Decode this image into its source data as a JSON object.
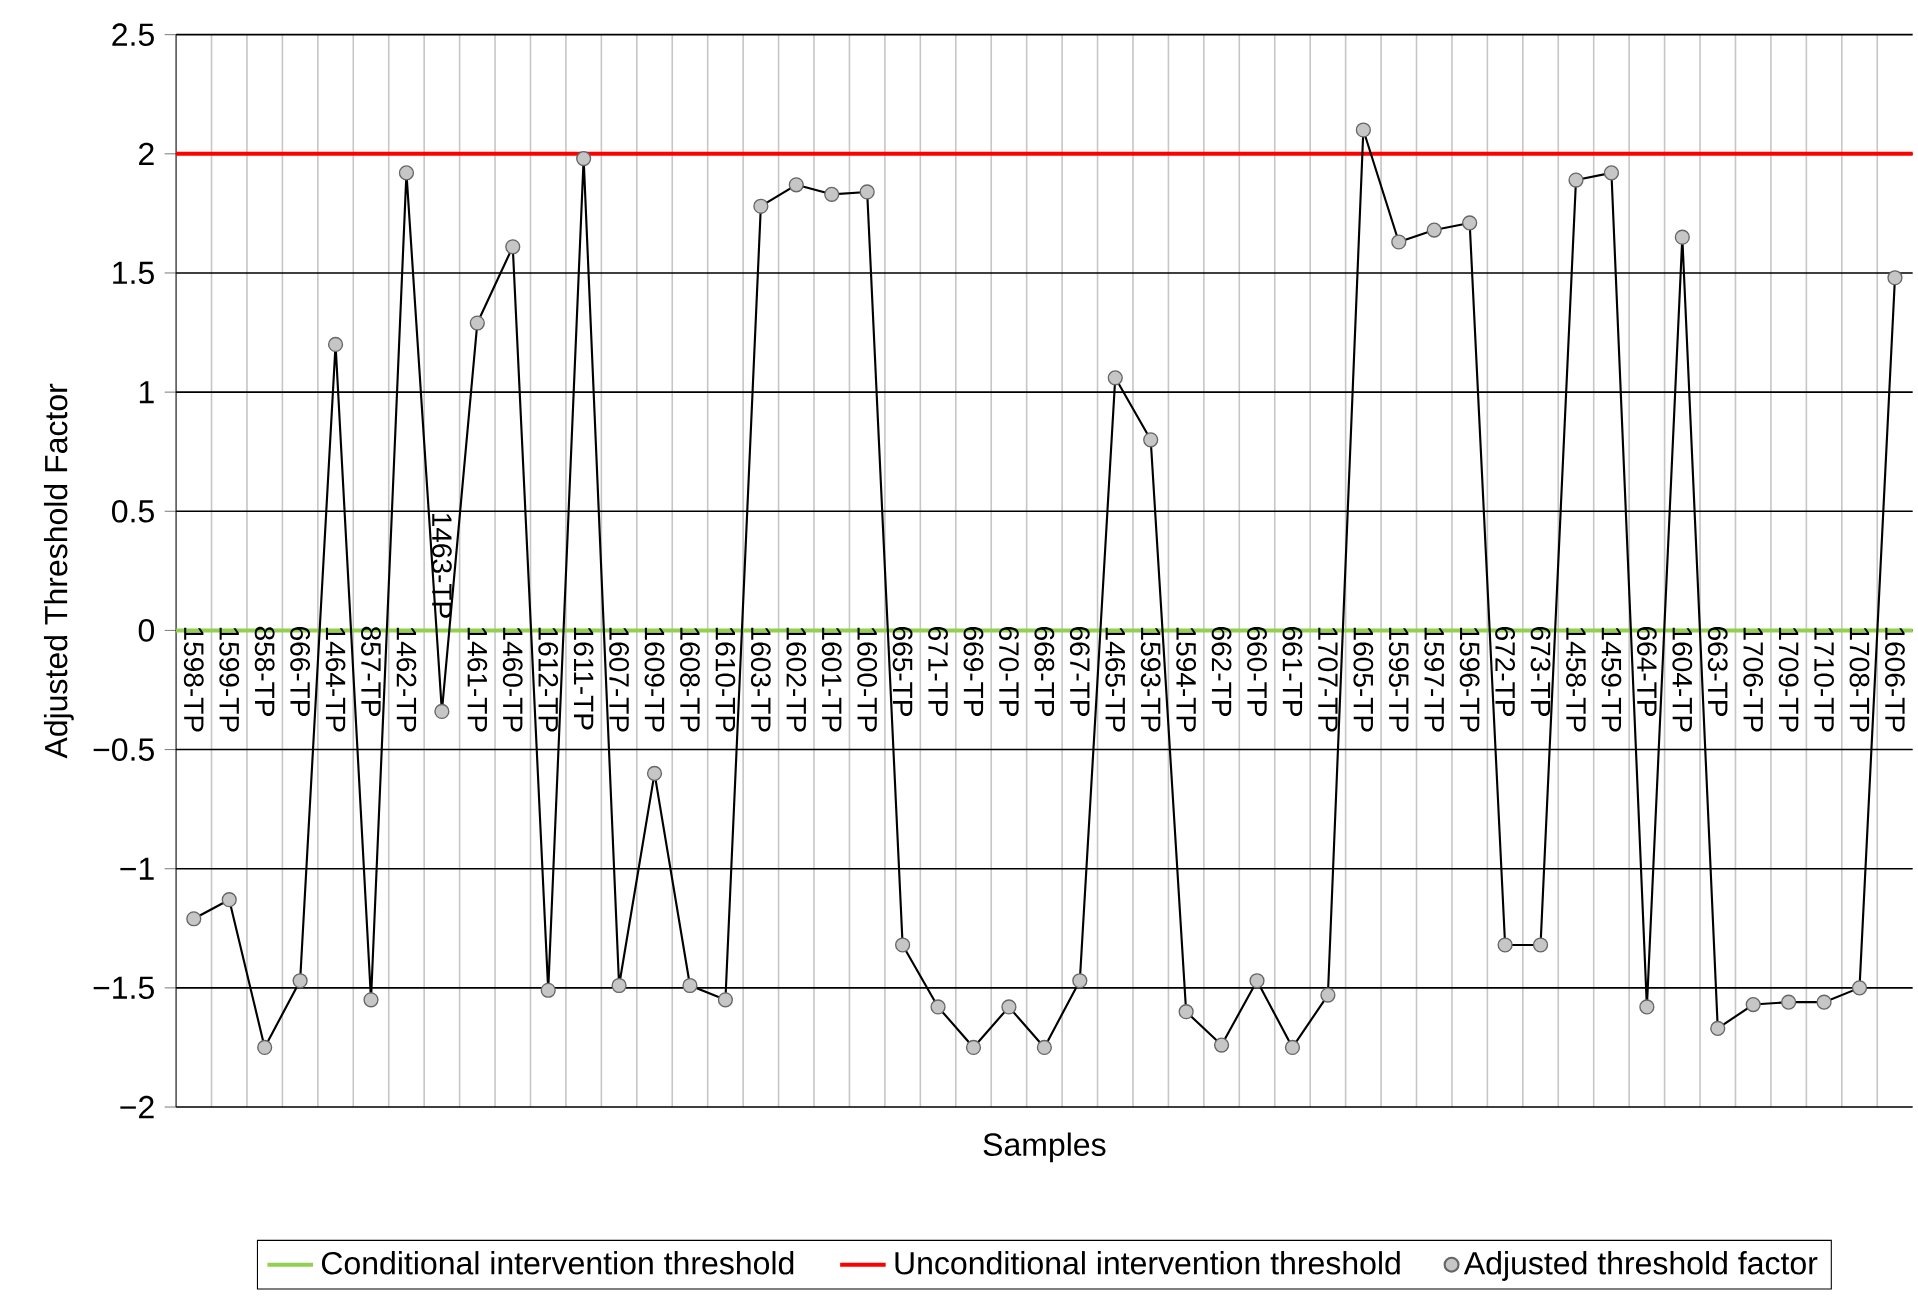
{
  "chart_data": {
    "type": "line",
    "xlabel": "Samples",
    "ylabel": "Adjusted Threshold Factor",
    "categories": [
      "1598-TP",
      "1599-TP",
      "858-TP",
      "666-TP",
      "1464-TP",
      "857-TP",
      "1462-TP",
      "1463-TP",
      "1461-TP",
      "1460-TP",
      "1612-TP",
      "1611-TP",
      "1607-TP",
      "1609-TP",
      "1608-TP",
      "1610-TP",
      "1603-TP",
      "1602-TP",
      "1601-TP",
      "1600-TP",
      "665-TP",
      "671-TP",
      "669-TP",
      "670-TP",
      "668-TP",
      "667-TP",
      "1465-TP",
      "1593-TP",
      "1594-TP",
      "662-TP",
      "660-TP",
      "661-TP",
      "1707-TP",
      "1605-TP",
      "1595-TP",
      "1597-TP",
      "1596-TP",
      "672-TP",
      "673-TP",
      "1458-TP",
      "1459-TP",
      "664-TP",
      "1604-TP",
      "663-TP",
      "1706-TP",
      "1709-TP",
      "1710-TP",
      "1708-TP",
      "1606-TP"
    ],
    "series": [
      {
        "name": "Adjusted threshold factor",
        "color": "#000000",
        "values": [
          -1.21,
          -1.13,
          -1.75,
          -1.47,
          1.2,
          -1.55,
          1.92,
          -0.34,
          1.29,
          1.61,
          -1.51,
          1.98,
          -1.49,
          -0.6,
          -1.49,
          -1.55,
          1.78,
          1.87,
          1.83,
          1.84,
          -1.32,
          -1.58,
          -1.75,
          -1.58,
          -1.75,
          -1.47,
          1.06,
          0.8,
          -1.6,
          -1.74,
          -1.47,
          -1.75,
          -1.53,
          2.1,
          1.63,
          1.68,
          1.71,
          -1.32,
          -1.32,
          1.89,
          1.92,
          -1.58,
          1.65,
          -1.67,
          -1.57,
          -1.56,
          -1.56,
          -1.5,
          1.48
        ]
      }
    ],
    "ref_lines": [
      {
        "axis": "y",
        "value": 0,
        "label": "Conditional intervention threshold",
        "color": "#92d050"
      },
      {
        "axis": "y",
        "value": 2,
        "label": "Unconditional intervention threshold",
        "color": "#ff0000"
      }
    ],
    "ylim": [
      -2,
      2.5
    ],
    "yticks": [
      {
        "value": -2,
        "label": "−2"
      },
      {
        "value": -1.5,
        "label": "−1.5"
      },
      {
        "value": -1,
        "label": "−1"
      },
      {
        "value": -0.5,
        "label": "−0.5"
      },
      0,
      0.5,
      1,
      1.5,
      2,
      2.5
    ],
    "grid": true,
    "legend": "bottom",
    "marker": "circle",
    "line_style": "solid"
  }
}
